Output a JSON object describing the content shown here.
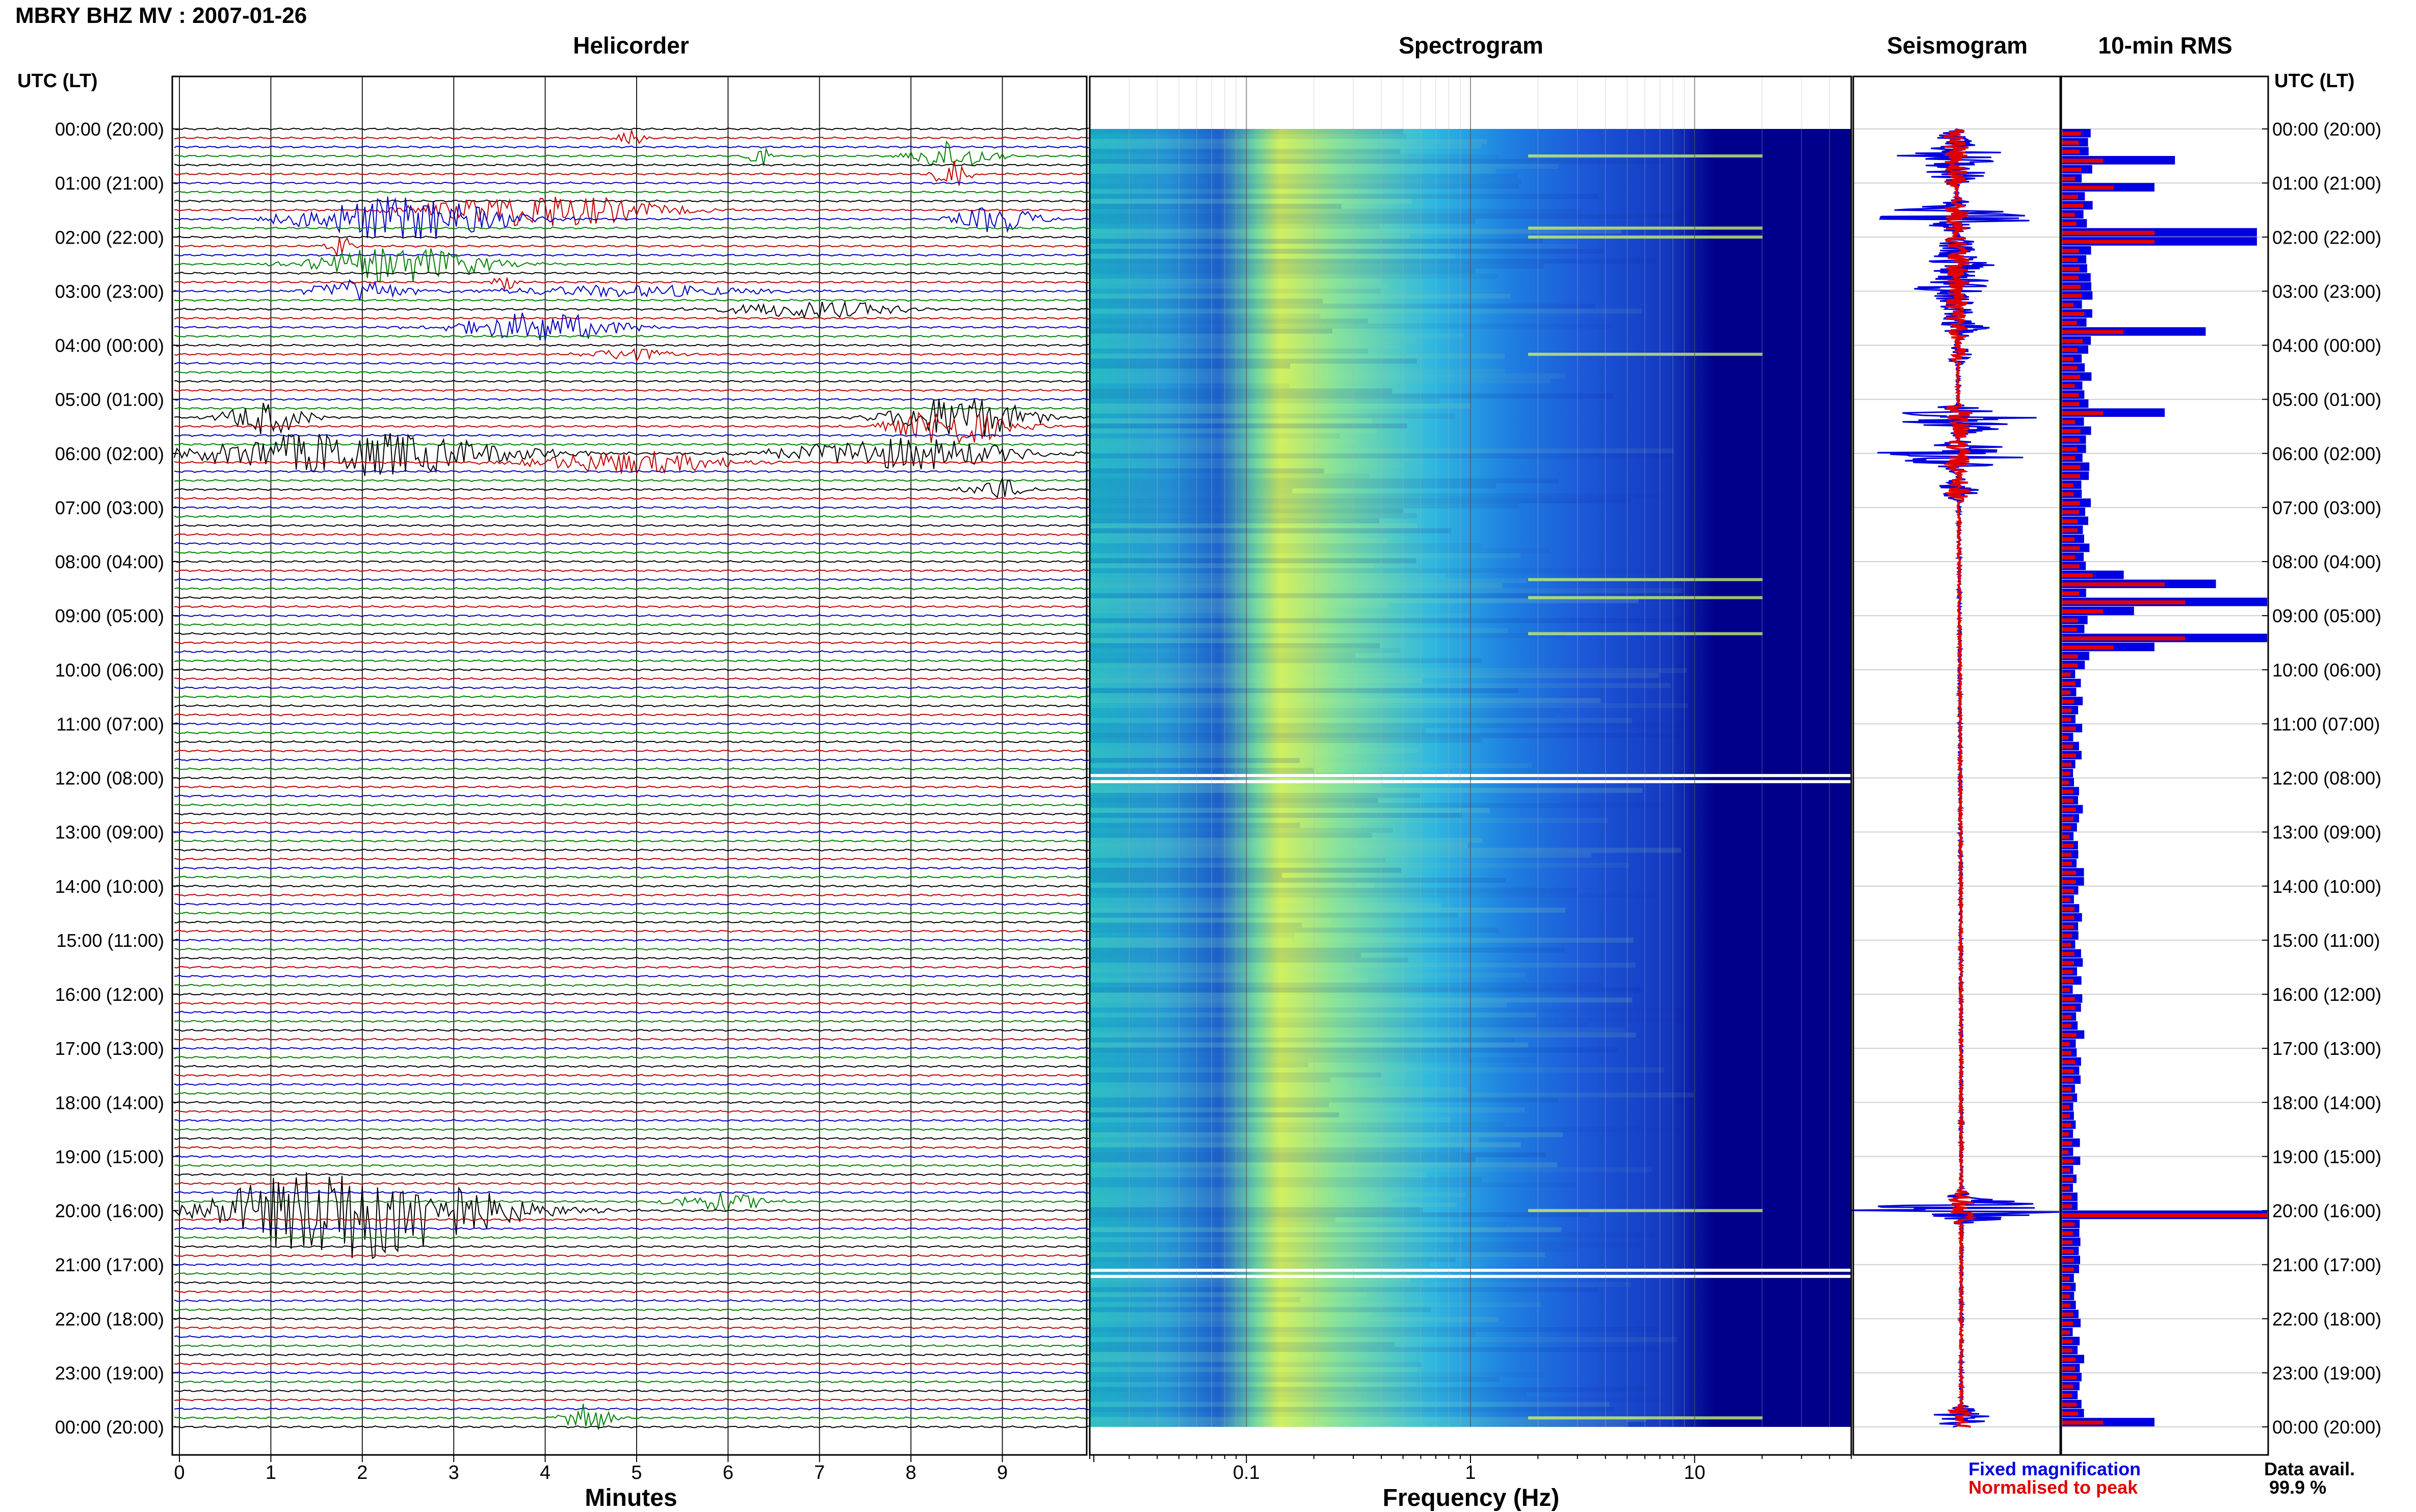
{
  "header": {
    "station_title": "MBRY BHZ MV : 2007-01-26",
    "utc_label_left": "UTC (LT)",
    "utc_label_right": "UTC (LT)"
  },
  "panels": {
    "helicorder_title": "Helicorder",
    "spectrogram_title": "Spectrogram",
    "seismogram_title": "Seismogram",
    "rms_title": "10-min RMS"
  },
  "axes": {
    "minutes_title": "Minutes",
    "frequency_title": "Frequency (Hz)"
  },
  "legend": {
    "fixed_label": "Fixed magnification",
    "normalised_label": "Normalised to peak",
    "fixed_color": "#0000e0",
    "normalised_color": "#e00000"
  },
  "data_availability": {
    "label": "Data avail.",
    "value": "99.9 %"
  },
  "colors": {
    "trace_cycle": [
      "#000000",
      "#c00000",
      "#0000c0",
      "#008000"
    ],
    "spectrogram_low": "#00008b",
    "spectrogram_high": "#ffff00"
  },
  "chart_data": [
    {
      "type": "line",
      "title": "Helicorder",
      "xlabel": "Minutes",
      "x_ticks": [
        0,
        1,
        2,
        3,
        4,
        5,
        6,
        7,
        8,
        9
      ],
      "xlim": [
        0,
        10
      ],
      "hour_labels": [
        "00:00 (20:00)",
        "01:00 (21:00)",
        "02:00 (22:00)",
        "03:00 (23:00)",
        "04:00 (00:00)",
        "05:00 (01:00)",
        "06:00 (02:00)",
        "07:00 (03:00)",
        "08:00 (04:00)",
        "09:00 (05:00)",
        "10:00 (06:00)",
        "11:00 (07:00)",
        "12:00 (08:00)",
        "13:00 (09:00)",
        "14:00 (10:00)",
        "15:00 (11:00)",
        "16:00 (12:00)",
        "17:00 (13:00)",
        "18:00 (14:00)",
        "19:00 (15:00)",
        "20:00 (16:00)",
        "21:00 (17:00)",
        "22:00 (18:00)",
        "23:00 (19:00)",
        "00:00 (20:00)"
      ],
      "lines_per_hour": 6,
      "events": [
        {
          "line": 1,
          "minute": 5.0,
          "width": 0.4,
          "amp": 0.8
        },
        {
          "line": 3,
          "minute": 6.4,
          "width": 0.3,
          "amp": 1.2
        },
        {
          "line": 3,
          "minute": 8.5,
          "width": 1.2,
          "amp": 1.3
        },
        {
          "line": 5,
          "minute": 8.5,
          "width": 0.5,
          "amp": 1.4
        },
        {
          "line": 9,
          "minute": 4.0,
          "width": 3.5,
          "amp": 1.5
        },
        {
          "line": 10,
          "minute": 2.5,
          "width": 3.0,
          "amp": 2.0
        },
        {
          "line": 10,
          "minute": 9.0,
          "width": 1.2,
          "amp": 1.2
        },
        {
          "line": 13,
          "minute": 1.8,
          "width": 0.4,
          "amp": 1.0
        },
        {
          "line": 15,
          "minute": 2.5,
          "width": 2.5,
          "amp": 1.6
        },
        {
          "line": 17,
          "minute": 3.6,
          "width": 0.3,
          "amp": 1.2
        },
        {
          "line": 18,
          "minute": 2.0,
          "width": 1.4,
          "amp": 1.0
        },
        {
          "line": 18,
          "minute": 5.0,
          "width": 4.0,
          "amp": 0.5
        },
        {
          "line": 20,
          "minute": 7.0,
          "width": 2.5,
          "amp": 0.8
        },
        {
          "line": 22,
          "minute": 4.0,
          "width": 2.5,
          "amp": 1.3
        },
        {
          "line": 25,
          "minute": 5.0,
          "width": 1.2,
          "amp": 0.6
        },
        {
          "line": 32,
          "minute": 1.0,
          "width": 1.2,
          "amp": 1.5
        },
        {
          "line": 32,
          "minute": 8.6,
          "width": 2.0,
          "amp": 2.0
        },
        {
          "line": 33,
          "minute": 8.5,
          "width": 1.8,
          "amp": 1.6
        },
        {
          "line": 36,
          "minute": 2.0,
          "width": 4.5,
          "amp": 2.0
        },
        {
          "line": 36,
          "minute": 8.0,
          "width": 3.5,
          "amp": 1.4
        },
        {
          "line": 37,
          "minute": 5.0,
          "width": 3.0,
          "amp": 1.0
        },
        {
          "line": 40,
          "minute": 9.0,
          "width": 0.8,
          "amp": 1.0
        },
        {
          "line": 120,
          "minute": 2.0,
          "width": 4.0,
          "amp": 4.5
        },
        {
          "line": 119,
          "minute": 6.0,
          "width": 1.5,
          "amp": 0.8
        },
        {
          "line": 143,
          "minute": 4.5,
          "width": 0.7,
          "amp": 1.5
        }
      ]
    },
    {
      "type": "heatmap",
      "title": "Spectrogram",
      "xlabel": "Frequency (Hz)",
      "x_scale": "log",
      "x_ticks": [
        0.1,
        1,
        10
      ],
      "xlim": [
        0.02,
        50
      ]
    },
    {
      "type": "line",
      "title": "Seismogram"
    },
    {
      "type": "bar",
      "title": "10-min RMS",
      "series": [
        {
          "name": "Fixed magnification",
          "color": "#0000e0"
        },
        {
          "name": "Normalised to peak",
          "color": "#e00000"
        }
      ],
      "spikes": [
        {
          "line": 3,
          "fixed": 0.55,
          "normalised": 0.2
        },
        {
          "line": 6,
          "fixed": 0.45,
          "normalised": 0.25
        },
        {
          "line": 11,
          "fixed": 0.95,
          "normalised": 0.45
        },
        {
          "line": 12,
          "fixed": 0.95,
          "normalised": 0.45
        },
        {
          "line": 22,
          "fixed": 0.7,
          "normalised": 0.3
        },
        {
          "line": 31,
          "fixed": 0.5,
          "normalised": 0.2
        },
        {
          "line": 49,
          "fixed": 0.3,
          "normalised": 0.15
        },
        {
          "line": 50,
          "fixed": 0.75,
          "normalised": 0.5
        },
        {
          "line": 52,
          "fixed": 1.0,
          "normalised": 0.6
        },
        {
          "line": 53,
          "fixed": 0.35,
          "normalised": 0.2
        },
        {
          "line": 56,
          "fixed": 1.0,
          "normalised": 0.6
        },
        {
          "line": 57,
          "fixed": 0.45,
          "normalised": 0.25
        },
        {
          "line": 120,
          "fixed": 1.0,
          "normalised": 1.0
        },
        {
          "line": 143,
          "fixed": 0.45,
          "normalised": 0.2
        }
      ]
    }
  ]
}
